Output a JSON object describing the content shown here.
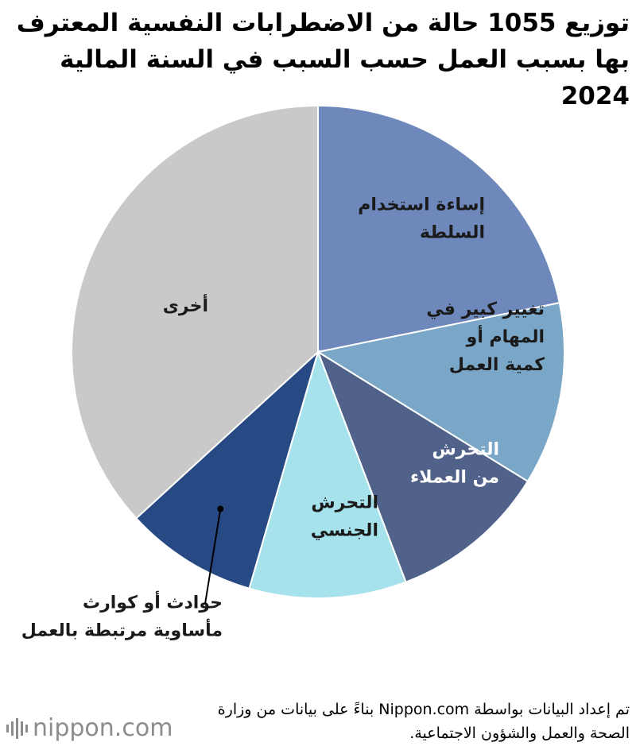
{
  "title": "توزيع 1055 حالة من الاضطرابات النفسية المعترف بها بسبب العمل حسب السبب في السنة المالية 2024",
  "chart_data": {
    "type": "pie",
    "start_angle_deg": 0,
    "direction": "clockwise",
    "slices": [
      {
        "label_lines": [
          "إساءة استخدام",
          "السلطة"
        ],
        "value": 21.8,
        "color": "#6e88bb",
        "label_color": "dark"
      },
      {
        "label_lines": [
          "تغيير كبير في",
          "المهام أو",
          "كمية العمل"
        ],
        "value": 12.0,
        "color": "#7aa7c7",
        "label_color": "dark"
      },
      {
        "label_lines": [
          "التحرش",
          "من العملاء"
        ],
        "value": 10.4,
        "color": "#50628a",
        "label_color": "light"
      },
      {
        "label_lines": [
          "التحرش",
          "الجنسي"
        ],
        "value": 10.3,
        "color": "#a6e2ec",
        "label_color": "dark"
      },
      {
        "label_lines": [
          "حوادث أو كوارث",
          "مأساوية مرتبطة بالعمل"
        ],
        "value": 8.7,
        "color": "#284a84",
        "label_color": "dark",
        "external": true
      },
      {
        "label_lines": [
          "أخرى"
        ],
        "value": 36.8,
        "color": "#c9c9c9",
        "label_color": "dark"
      }
    ]
  },
  "source": "تم إعداد البيانات بواسطة Nippon.com بناءً على بيانات من وزارة الصحة والعمل والشؤون الاجتماعية.",
  "logo": "nippon.com"
}
